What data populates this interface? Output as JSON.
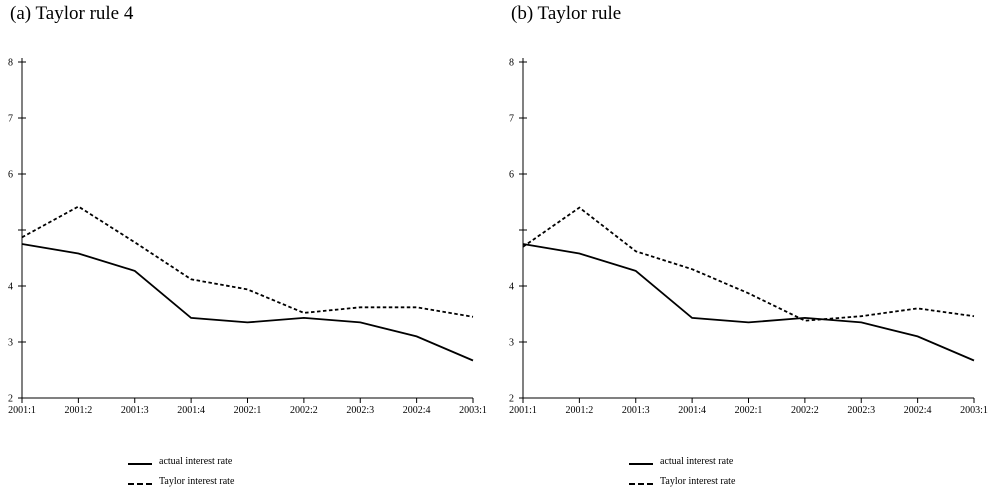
{
  "chart_data": [
    {
      "type": "line",
      "title": "(a) Taylor rule 4",
      "categories": [
        "2001:1",
        "2001:2",
        "2001:3",
        "2001:4",
        "2002:1",
        "2002:2",
        "2002:3",
        "2002:4",
        "2003:1"
      ],
      "yticks": [
        2,
        3,
        4,
        5,
        6,
        7,
        8
      ],
      "ytick_labels": [
        "2",
        "3",
        "4",
        "",
        "6",
        "7",
        "8"
      ],
      "ylim": [
        2,
        8
      ],
      "grid": false,
      "legend_position": "bottom-center",
      "series": [
        {
          "name": "actual interest rate",
          "style": "solid",
          "values": [
            4.75,
            4.58,
            4.27,
            3.43,
            3.35,
            3.43,
            3.35,
            3.1,
            2.67
          ]
        },
        {
          "name": "Taylor interest rate",
          "style": "dashed",
          "values": [
            4.87,
            5.42,
            4.78,
            4.12,
            3.94,
            3.52,
            3.62,
            3.62,
            3.45
          ]
        }
      ]
    },
    {
      "type": "line",
      "title": "(b) Taylor rule",
      "categories": [
        "2001:1",
        "2001:2",
        "2001:3",
        "2001:4",
        "2002:1",
        "2002:2",
        "2002:3",
        "2002:4",
        "2003:1"
      ],
      "yticks": [
        2,
        3,
        4,
        5,
        6,
        7,
        8
      ],
      "ytick_labels": [
        "2",
        "3",
        "4",
        "",
        "6",
        "7",
        "8"
      ],
      "ylim": [
        2,
        8
      ],
      "grid": false,
      "legend_position": "bottom-center",
      "series": [
        {
          "name": "actual interest rate",
          "style": "solid",
          "values": [
            4.75,
            4.58,
            4.27,
            3.43,
            3.35,
            3.43,
            3.35,
            3.1,
            2.67
          ]
        },
        {
          "name": "Taylor interest rate",
          "style": "dashed",
          "values": [
            4.7,
            5.4,
            4.62,
            4.3,
            3.87,
            3.38,
            3.46,
            3.6,
            3.46
          ]
        }
      ]
    }
  ]
}
